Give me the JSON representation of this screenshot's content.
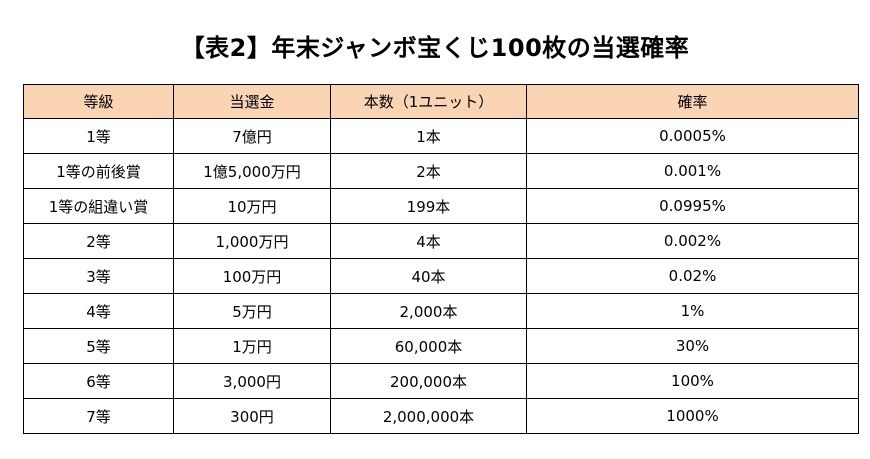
{
  "title": "【表2】年末ジャンボ宝くじ100枚の当選確率",
  "colors": {
    "header_background": "#fbd4b4",
    "border": "#000000"
  },
  "table": {
    "headers": [
      "等級",
      "当選金",
      "本数（1ユニット）",
      "確率"
    ],
    "rows": [
      [
        "1等",
        "7億円",
        "1本",
        "0.0005%"
      ],
      [
        "1等の前後賞",
        "1億5,000万円",
        "2本",
        "0.001%"
      ],
      [
        "1等の組違い賞",
        "10万円",
        "199本",
        "0.0995%"
      ],
      [
        "2等",
        "1,000万円",
        "4本",
        "0.002%"
      ],
      [
        "3等",
        "100万円",
        "40本",
        "0.02%"
      ],
      [
        "4等",
        "5万円",
        "2,000本",
        "1%"
      ],
      [
        "5等",
        "1万円",
        "60,000本",
        "30%"
      ],
      [
        "6等",
        "3,000円",
        "200,000本",
        "100%"
      ],
      [
        "7等",
        "300円",
        "2,000,000本",
        "1000%"
      ]
    ]
  }
}
